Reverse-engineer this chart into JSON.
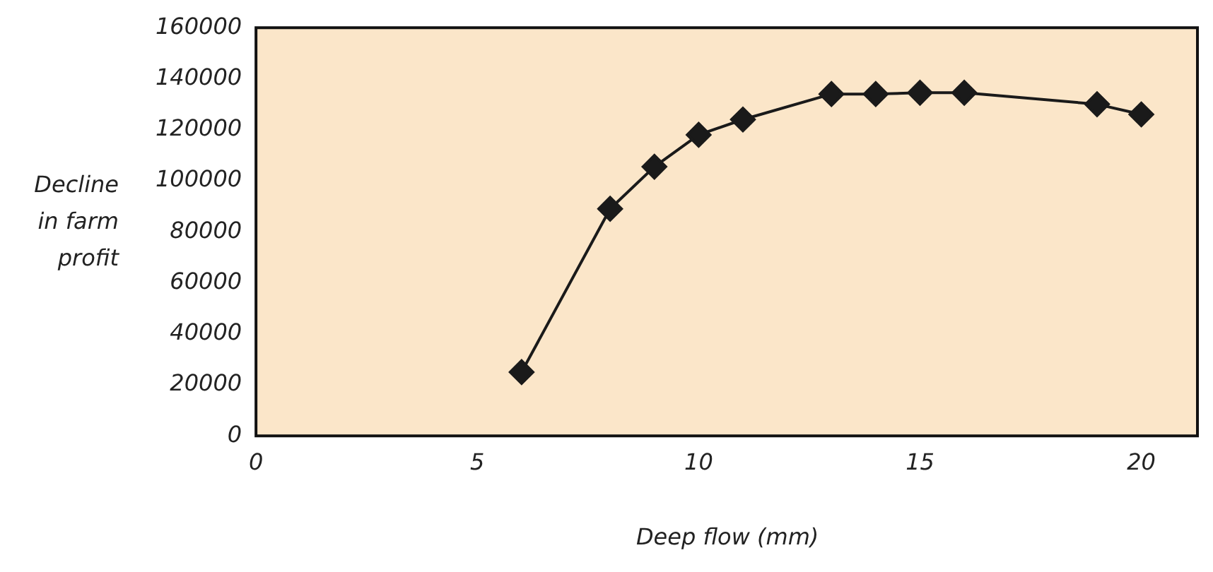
{
  "chart_data": {
    "type": "line",
    "xlabel": "Deep flow (mm)",
    "ylabel": "Decline in farm profit",
    "x": [
      6,
      8,
      9,
      10,
      11,
      13,
      14,
      15,
      16,
      19,
      20
    ],
    "series": [
      {
        "color": "#1a1a1a",
        "values": [
          25000,
          89000,
          105500,
          118000,
          124000,
          134000,
          134000,
          134500,
          134500,
          130000,
          126000
        ]
      }
    ],
    "xlim": [
      0,
      21.3
    ],
    "xticks": [
      0,
      5,
      10,
      15,
      20
    ],
    "ylim": [
      0,
      160000
    ],
    "yticks": [
      0,
      20000,
      40000,
      60000,
      80000,
      100000,
      120000,
      140000,
      160000
    ],
    "marker": "diamond",
    "line_style": "solid",
    "legend": false
  }
}
